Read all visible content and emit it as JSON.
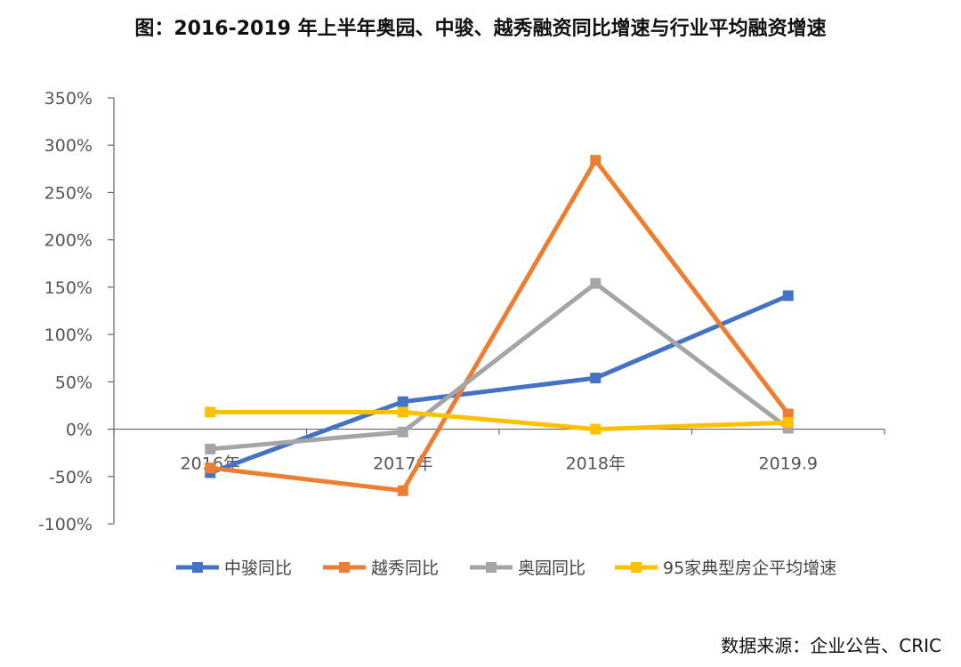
{
  "title": "图：2016-2019 年上半年奥园、中骏、越秀融资同比增速与行业平均融资增速",
  "source": "数据来源：企业公告、CRIC",
  "chart_data": {
    "type": "line",
    "categories": [
      "2016年",
      "2017年",
      "2018年",
      "2019.9"
    ],
    "ylim": [
      -100,
      350
    ],
    "yticks": [
      350,
      300,
      250,
      200,
      150,
      100,
      50,
      0,
      -50,
      -100
    ],
    "ytick_labels": [
      "350%",
      "300%",
      "250%",
      "200%",
      "150%",
      "100%",
      "50%",
      "0%",
      "-50%",
      "-100%"
    ],
    "grid": false,
    "legend_position": "bottom",
    "series": [
      {
        "name": "中骏同比",
        "color": "#4472C4",
        "values": [
          -46,
          29,
          54,
          141
        ]
      },
      {
        "name": "越秀同比",
        "color": "#ED7D31",
        "values": [
          -41,
          -65,
          284,
          16
        ]
      },
      {
        "name": "奥园同比",
        "color": "#A5A5A5",
        "values": [
          -21,
          -3,
          154,
          1
        ]
      },
      {
        "name": "95家典型房企平均增速",
        "color": "#FFC000",
        "values": [
          18,
          18,
          0,
          7
        ]
      }
    ]
  }
}
